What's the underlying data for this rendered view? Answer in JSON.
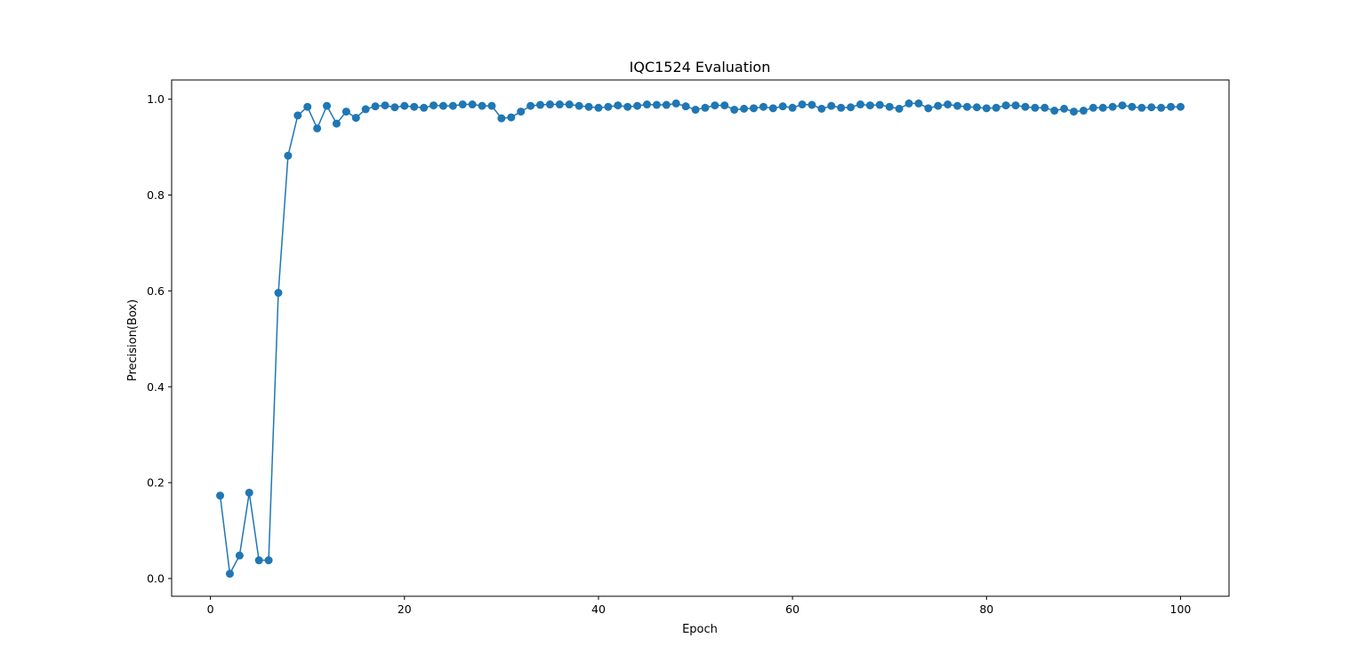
{
  "chart_data": {
    "type": "line",
    "title": "IQC1524 Evaluation",
    "xlabel": "Epoch",
    "ylabel": "Precision(Box)",
    "xlim": [
      -4,
      105
    ],
    "ylim": [
      -0.037,
      1.04
    ],
    "xticks": [
      0,
      20,
      40,
      60,
      80,
      100
    ],
    "xtick_labels": [
      "0",
      "20",
      "40",
      "60",
      "80",
      "100"
    ],
    "yticks": [
      0.0,
      0.2,
      0.4,
      0.6,
      0.8,
      1.0
    ],
    "ytick_labels": [
      "0.0",
      "0.2",
      "0.4",
      "0.6",
      "0.8",
      "1.0"
    ],
    "grid": false,
    "marker": "circle",
    "series": [
      {
        "color": "#1f77b4",
        "x": [
          1,
          2,
          3,
          4,
          5,
          6,
          7,
          8,
          9,
          10,
          11,
          12,
          13,
          14,
          15,
          16,
          17,
          18,
          19,
          20,
          21,
          22,
          23,
          24,
          25,
          26,
          27,
          28,
          29,
          30,
          31,
          32,
          33,
          34,
          35,
          36,
          37,
          38,
          39,
          40,
          41,
          42,
          43,
          44,
          45,
          46,
          47,
          48,
          49,
          50,
          51,
          52,
          53,
          54,
          55,
          56,
          57,
          58,
          59,
          60,
          61,
          62,
          63,
          64,
          65,
          66,
          67,
          68,
          69,
          70,
          71,
          72,
          73,
          74,
          75,
          76,
          77,
          78,
          79,
          80,
          81,
          82,
          83,
          84,
          85,
          86,
          87,
          88,
          89,
          90,
          91,
          92,
          93,
          94,
          95,
          96,
          97,
          98,
          99,
          100
        ],
        "y": [
          0.173,
          0.01,
          0.048,
          0.179,
          0.038,
          0.038,
          0.596,
          0.882,
          0.966,
          0.984,
          0.939,
          0.986,
          0.949,
          0.974,
          0.961,
          0.979,
          0.985,
          0.987,
          0.983,
          0.986,
          0.984,
          0.982,
          0.987,
          0.986,
          0.986,
          0.989,
          0.989,
          0.986,
          0.986,
          0.96,
          0.962,
          0.974,
          0.986,
          0.988,
          0.989,
          0.989,
          0.989,
          0.986,
          0.984,
          0.982,
          0.984,
          0.987,
          0.984,
          0.986,
          0.989,
          0.988,
          0.988,
          0.991,
          0.985,
          0.978,
          0.982,
          0.987,
          0.987,
          0.978,
          0.98,
          0.981,
          0.984,
          0.981,
          0.985,
          0.982,
          0.989,
          0.988,
          0.98,
          0.986,
          0.982,
          0.983,
          0.989,
          0.987,
          0.988,
          0.984,
          0.98,
          0.991,
          0.991,
          0.981,
          0.986,
          0.989,
          0.986,
          0.984,
          0.983,
          0.981,
          0.982,
          0.987,
          0.987,
          0.984,
          0.982,
          0.982,
          0.976,
          0.98,
          0.974,
          0.976,
          0.982,
          0.982,
          0.984,
          0.987,
          0.984,
          0.982,
          0.983,
          0.982,
          0.984,
          0.984
        ]
      }
    ]
  }
}
